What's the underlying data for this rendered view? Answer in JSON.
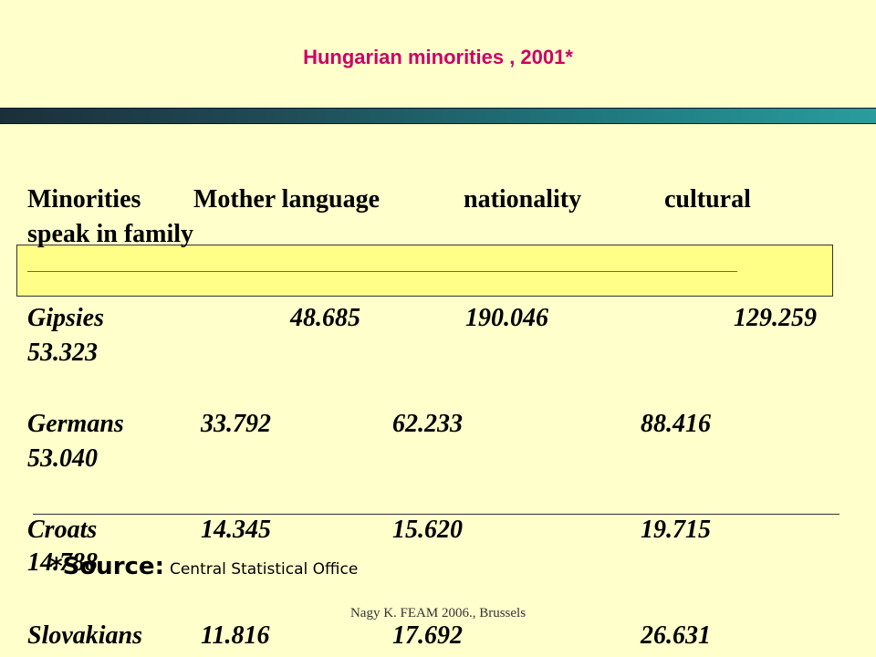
{
  "slide": {
    "title": "Hungarian minorities , 2001*",
    "headers": {
      "c1": "Minorities",
      "c2": "Mother language",
      "c3": "nationality",
      "c4": "cultural",
      "c5": "speak in family"
    },
    "rows": [
      {
        "name": "Gipsies",
        "mother": "48.685",
        "nationality": "190.046",
        "cultural": "129.259",
        "family": "53.323"
      },
      {
        "name": "Germans",
        "mother": "33.792",
        "nationality": "62.233",
        "cultural": "88.416",
        "family": "53.040"
      },
      {
        "name": "Croats",
        "mother": "14.345",
        "nationality": "15.620",
        "cultural": "19.715",
        "family": "14.788"
      },
      {
        "name": "Slovakians",
        "mother": "11.816",
        "nationality": "17.692",
        "cultural": "26.631"
      }
    ],
    "source_label": "*Source:",
    "source_value": "Central Statistical Office",
    "footer": "Nagy K. FEAM 2006., Brussels"
  }
}
